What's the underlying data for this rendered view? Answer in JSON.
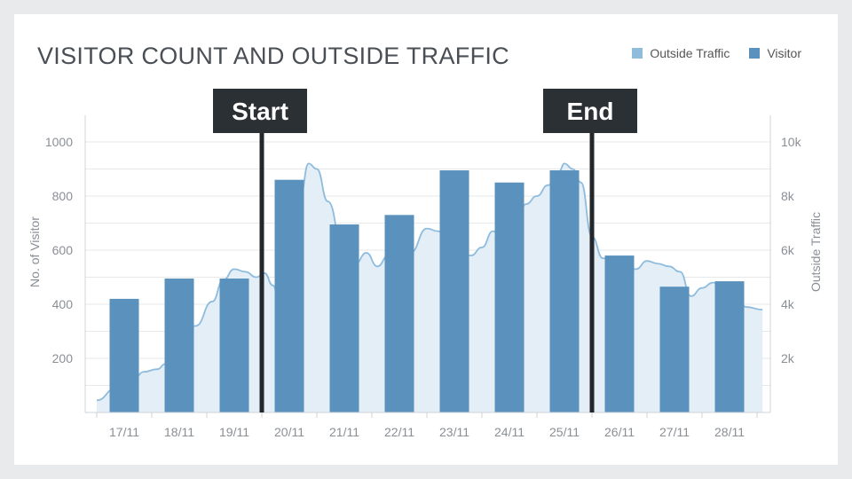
{
  "chart_data": {
    "type": "bar+area",
    "title": "VISITOR COUNT AND OUTSIDE TRAFFIC",
    "categories": [
      "17/11",
      "18/11",
      "19/11",
      "20/11",
      "21/11",
      "22/11",
      "23/11",
      "24/11",
      "25/11",
      "26/11",
      "27/11",
      "28/11"
    ],
    "series": [
      {
        "name": "Visitor",
        "type": "bar",
        "axis": "left",
        "color": "#5a92bd",
        "values": [
          420,
          495,
          495,
          860,
          695,
          730,
          895,
          850,
          895,
          580,
          465,
          485
        ]
      },
      {
        "name": "Outside Traffic",
        "type": "area",
        "axis": "right",
        "color": "#8fbcdc",
        "fill": "#e3eef7",
        "x": [
          16.5,
          16.85,
          17.0,
          17.2,
          17.35,
          17.6,
          17.75,
          18.0,
          18.3,
          18.6,
          18.8,
          19.0,
          19.2,
          19.4,
          19.55,
          19.7,
          19.8,
          19.9,
          20.0,
          20.1,
          20.2,
          20.35,
          20.5,
          20.7,
          21.0,
          21.2,
          21.4,
          21.6,
          21.8,
          22.0,
          22.2,
          22.5,
          22.7,
          22.9,
          23.1,
          23.3,
          23.5,
          23.7,
          23.9,
          24.1,
          24.3,
          24.5,
          24.7,
          24.9,
          25.0,
          25.15,
          25.3,
          25.5,
          25.7,
          25.9,
          26.1,
          26.3,
          26.5,
          26.7,
          26.9,
          27.1,
          27.3,
          27.5,
          27.7,
          27.9,
          28.1,
          28.3,
          28.6
        ],
        "values": [
          450,
          900,
          1200,
          1300,
          1500,
          1600,
          1800,
          2500,
          3200,
          4100,
          4900,
          5300,
          5200,
          5000,
          5150,
          4700,
          4300,
          3500,
          3000,
          4000,
          8000,
          9200,
          9000,
          7800,
          5800,
          5500,
          5900,
          5400,
          5800,
          5500,
          5900,
          6800,
          6700,
          6300,
          5900,
          5800,
          6100,
          6700,
          6300,
          6700,
          7700,
          8000,
          8400,
          8900,
          9200,
          9000,
          8500,
          6500,
          5700,
          5500,
          5300,
          5300,
          5600,
          5500,
          5400,
          5200,
          4300,
          4600,
          4800,
          4700,
          4500,
          3900,
          3800
        ]
      }
    ],
    "left_axis": {
      "label": "No. of Visitor",
      "ticks": [
        "200",
        "400",
        "600",
        "800",
        "1000"
      ],
      "ylim": [
        0,
        1000
      ]
    },
    "right_axis": {
      "label": "Outside Traffic",
      "ticks": [
        "2k",
        "4k",
        "6k",
        "8k",
        "10k"
      ],
      "ylim": [
        0,
        10000
      ]
    },
    "markers": [
      {
        "label": "Start",
        "position": 19.5
      },
      {
        "label": "End",
        "position": 25.5
      }
    ],
    "legend": {
      "placement": "top-right",
      "entries": [
        "Outside Traffic",
        "Visitor"
      ]
    },
    "grid": true
  }
}
